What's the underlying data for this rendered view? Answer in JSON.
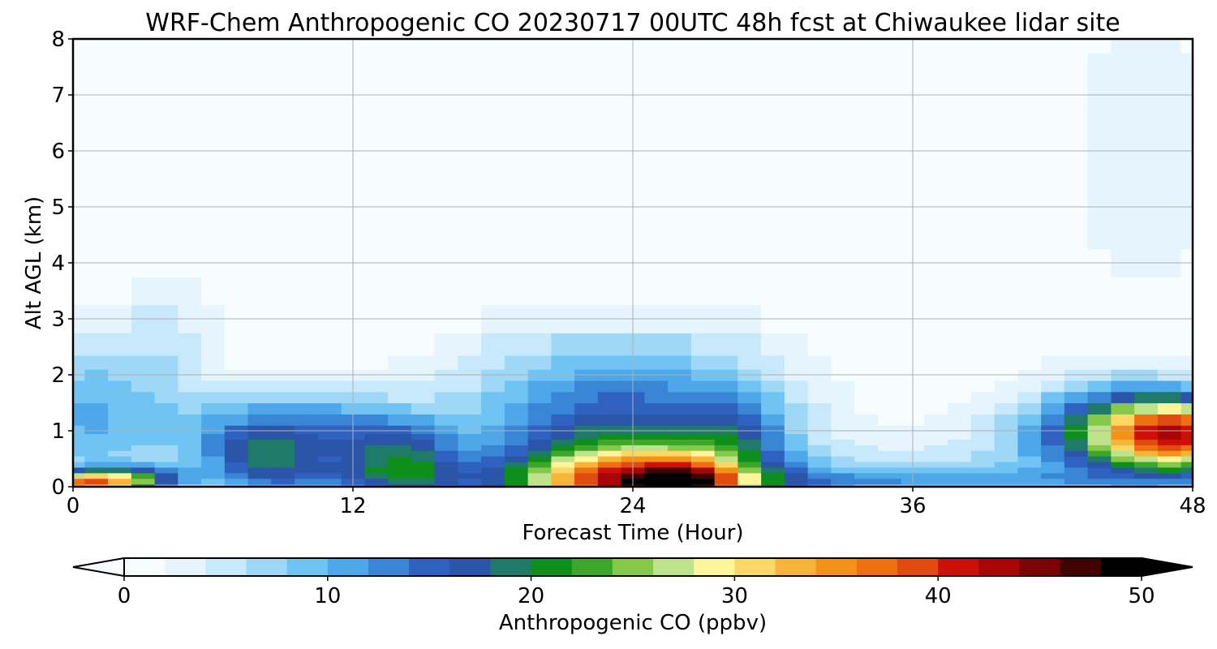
{
  "chart_data": {
    "type": "heatmap",
    "title": "WRF-Chem Anthropogenic CO  20230717 00UTC 48h fcst at Chiwaukee lidar site",
    "xlabel": "Forecast Time (Hour)",
    "ylabel": "Alt AGL (km)",
    "xlim": [
      0,
      48
    ],
    "ylim": [
      0,
      8
    ],
    "xticks": [
      "0",
      "12",
      "24",
      "36",
      "48"
    ],
    "yticks": [
      "0",
      "1",
      "2",
      "3",
      "4",
      "5",
      "6",
      "7",
      "8"
    ],
    "grid": true,
    "colorbar": {
      "label": "Anthropogenic CO  (ppbv)",
      "range": [
        0,
        50
      ],
      "ticks": [
        "0",
        "10",
        "20",
        "30",
        "40",
        "50"
      ],
      "extend": "both",
      "orientation": "horizontal",
      "placement": "bottom",
      "colors": [
        "#f7fcff",
        "#e6f5fd",
        "#c7e9fb",
        "#9fd8f7",
        "#6fc4f3",
        "#4ea7e8",
        "#3a86d6",
        "#2f62c0",
        "#2a55a8",
        "#1f7a6a",
        "#0e8f1c",
        "#3ea62a",
        "#86c94a",
        "#bfe38a",
        "#fff59a",
        "#fbd766",
        "#f8b43a",
        "#f59018",
        "#ee7010",
        "#e04b10",
        "#cc1008",
        "#a80606",
        "#7a0404",
        "#420202",
        "#000000"
      ]
    },
    "value_unit": "ppbv",
    "x": [
      0,
      1,
      2,
      3,
      4,
      5,
      6,
      7,
      8,
      9,
      10,
      11,
      12,
      13,
      14,
      15,
      16,
      17,
      18,
      19,
      20,
      21,
      22,
      23,
      24,
      25,
      26,
      27,
      28,
      29,
      30,
      31,
      32,
      33,
      34,
      35,
      36,
      37,
      38,
      39,
      40,
      41,
      42,
      43,
      44,
      45,
      46,
      47,
      48
    ],
    "y": [
      0.0,
      0.1,
      0.2,
      0.3,
      0.4,
      0.5,
      0.6,
      0.7,
      0.8,
      0.9,
      1.0,
      1.2,
      1.4,
      1.6,
      1.8,
      2.0,
      2.2,
      2.5,
      3.0,
      3.5,
      4.0,
      4.5,
      5.0,
      5.5,
      6.0,
      6.5,
      7.0,
      7.5,
      8.0
    ],
    "features": [
      {
        "t": 0,
        "z": 0.05,
        "st": 1.5,
        "sz": 0.15,
        "v": 30
      },
      {
        "t": 2.5,
        "z": 0.15,
        "st": 1.5,
        "sz": 0.15,
        "v": 18
      },
      {
        "t": 0,
        "z": 1.2,
        "st": 2.5,
        "sz": 0.9,
        "v": 9
      },
      {
        "t": 2.5,
        "z": 2.2,
        "st": 2,
        "sz": 0.9,
        "v": 3
      },
      {
        "t": 4.5,
        "z": 2.8,
        "st": 1.3,
        "sz": 0.8,
        "v": 3
      },
      {
        "t": 9,
        "z": 0.9,
        "st": 3.5,
        "sz": 0.6,
        "v": 14
      },
      {
        "t": 8,
        "z": 0.5,
        "st": 1.5,
        "sz": 0.35,
        "v": 7
      },
      {
        "t": 12,
        "z": 0.15,
        "st": 5,
        "sz": 0.2,
        "v": 6
      },
      {
        "t": 13,
        "z": 0.6,
        "st": 2,
        "sz": 0.5,
        "v": 5
      },
      {
        "t": 14.5,
        "z": 0.4,
        "st": 1.5,
        "sz": 0.5,
        "v": 9
      },
      {
        "t": 23.5,
        "z": 1.0,
        "st": 5,
        "sz": 1.2,
        "v": 16
      },
      {
        "t": 24,
        "z": 0.05,
        "st": 3.5,
        "sz": 0.45,
        "v": 30
      },
      {
        "t": 26.5,
        "z": 0.05,
        "st": 1.5,
        "sz": 0.3,
        "v": 15
      },
      {
        "t": 28.5,
        "z": 1.0,
        "st": 1.5,
        "sz": 0.5,
        "v": 7
      },
      {
        "t": 36,
        "z": 0.1,
        "st": 7,
        "sz": 0.15,
        "v": 8
      },
      {
        "t": 36,
        "z": 0.35,
        "st": 6,
        "sz": 0.3,
        "v": 4
      },
      {
        "t": 47.5,
        "z": 0.95,
        "st": 2.5,
        "sz": 0.45,
        "v": 30
      },
      {
        "t": 46,
        "z": 0.9,
        "st": 4.5,
        "sz": 0.6,
        "v": 12
      },
      {
        "t": 44,
        "z": 1.2,
        "st": 2.5,
        "sz": 0.6,
        "v": 5
      },
      {
        "t": 46,
        "z": 6.0,
        "st": 3,
        "sz": 2.5,
        "v": 3
      }
    ]
  }
}
